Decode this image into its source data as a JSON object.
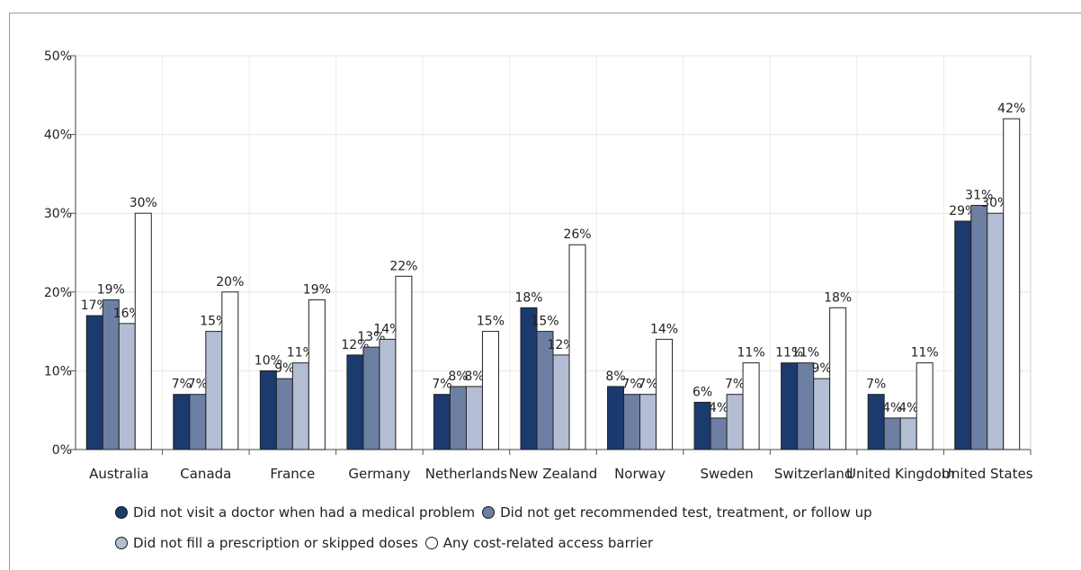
{
  "chart_data": {
    "type": "bar",
    "categories": [
      "Australia",
      "Canada",
      "France",
      "Germany",
      "Netherlands",
      "New Zealand",
      "Norway",
      "Sweden",
      "Switzerland",
      "United Kingdom",
      "United States"
    ],
    "series": [
      {
        "name": "Did not visit a doctor when had a medical problem",
        "color": "#1b3a6e",
        "values": [
          17,
          7,
          10,
          12,
          7,
          18,
          8,
          6,
          11,
          7,
          29
        ]
      },
      {
        "name": "Did not get recommended test, treatment, or follow up",
        "color": "#6d7fa3",
        "values": [
          19,
          7,
          9,
          13,
          8,
          15,
          7,
          4,
          11,
          4,
          31
        ]
      },
      {
        "name": "Did not fill a prescription or skipped doses",
        "color": "#b3bed4",
        "values": [
          16,
          15,
          11,
          14,
          8,
          12,
          7,
          7,
          9,
          4,
          30
        ]
      },
      {
        "name": "Any cost-related access barrier",
        "color": "#ffffff",
        "values": [
          30,
          20,
          19,
          22,
          15,
          26,
          14,
          11,
          18,
          11,
          42
        ]
      }
    ],
    "yticks": [
      "0%",
      "10%",
      "20%",
      "30%",
      "40%",
      "50%"
    ],
    "ylim": [
      0,
      50
    ],
    "value_suffix": "%",
    "grid": true,
    "legend_position": "bottom"
  }
}
